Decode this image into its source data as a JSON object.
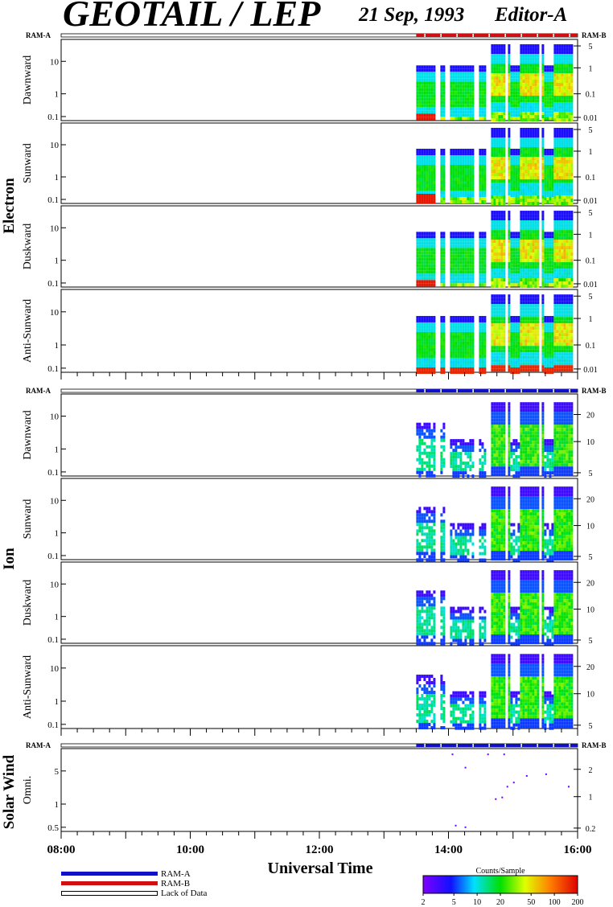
{
  "header": {
    "title": "GEOTAIL / LEP",
    "date": "21 Sep, 1993",
    "editor": "Editor-A"
  },
  "ram_labels": {
    "left": "RAM-A",
    "right": "RAM-B"
  },
  "groups": [
    {
      "name": "Electron",
      "ram_bar_color": "#d01010",
      "panels": [
        {
          "label": "Dawnward",
          "left_ticks": [
            "10",
            "1",
            "0.1"
          ],
          "right_ticks": [
            "5",
            "1",
            "0.1",
            "0.01"
          ]
        },
        {
          "label": "Sunward",
          "left_ticks": [
            "10",
            "1",
            "0.1"
          ],
          "right_ticks": [
            "5",
            "1",
            "0.1",
            "0.01"
          ]
        },
        {
          "label": "Duskward",
          "left_ticks": [
            "10",
            "1",
            "0.1"
          ],
          "right_ticks": [
            "5",
            "1",
            "0.1",
            "0.01"
          ]
        },
        {
          "label": "Anti-Sunward",
          "left_ticks": [
            "10",
            "1",
            "0.1"
          ],
          "right_ticks": [
            "5",
            "1",
            "0.1",
            "0.01"
          ]
        }
      ]
    },
    {
      "name": "Ion",
      "ram_bar_color": "#1010c8",
      "panels": [
        {
          "label": "Dawnward",
          "left_ticks": [
            "10",
            "1",
            "0.1"
          ],
          "right_ticks": [
            "20",
            "10",
            "5"
          ]
        },
        {
          "label": "Sunward",
          "left_ticks": [
            "10",
            "1",
            "0.1"
          ],
          "right_ticks": [
            "20",
            "10",
            "5"
          ]
        },
        {
          "label": "Duskward",
          "left_ticks": [
            "10",
            "1",
            "0.1"
          ],
          "right_ticks": [
            "20",
            "10",
            "5"
          ]
        },
        {
          "label": "Anti-Sunward",
          "left_ticks": [
            "10",
            "1",
            "0.1"
          ],
          "right_ticks": [
            "20",
            "10",
            "5"
          ]
        }
      ]
    },
    {
      "name": "Solar Wind",
      "ram_bar_color": "#1010c8",
      "panels": [
        {
          "label": "Omni.",
          "left_ticks": [
            "5",
            "1",
            "0.5"
          ],
          "right_ticks": [
            "2",
            "1",
            "0.2"
          ]
        }
      ]
    }
  ],
  "chart_data": {
    "type": "heatmap",
    "xlabel": "Universal Time",
    "x_ticks": [
      "08:00",
      "10:00",
      "12:00",
      "14:00",
      "16:00"
    ],
    "x_range_hours": [
      8,
      16
    ],
    "data_start_hour": 13.5,
    "data_gaps_hours": [
      13.82,
      13.97,
      14.42,
      14.6,
      14.88,
      15.4,
      15.95
    ],
    "colorbar": {
      "title": "Counts/Sample",
      "ticks": [
        "2",
        "5",
        "10",
        "20",
        "50",
        "100",
        "200"
      ],
      "range": [
        2,
        200
      ],
      "scale": "log"
    },
    "legend": [
      {
        "label": "RAM-A",
        "color": "#1010c8"
      },
      {
        "label": "RAM-B",
        "color": "#d01010"
      },
      {
        "label": "Lack of Data",
        "color": "#ffffff"
      }
    ]
  }
}
